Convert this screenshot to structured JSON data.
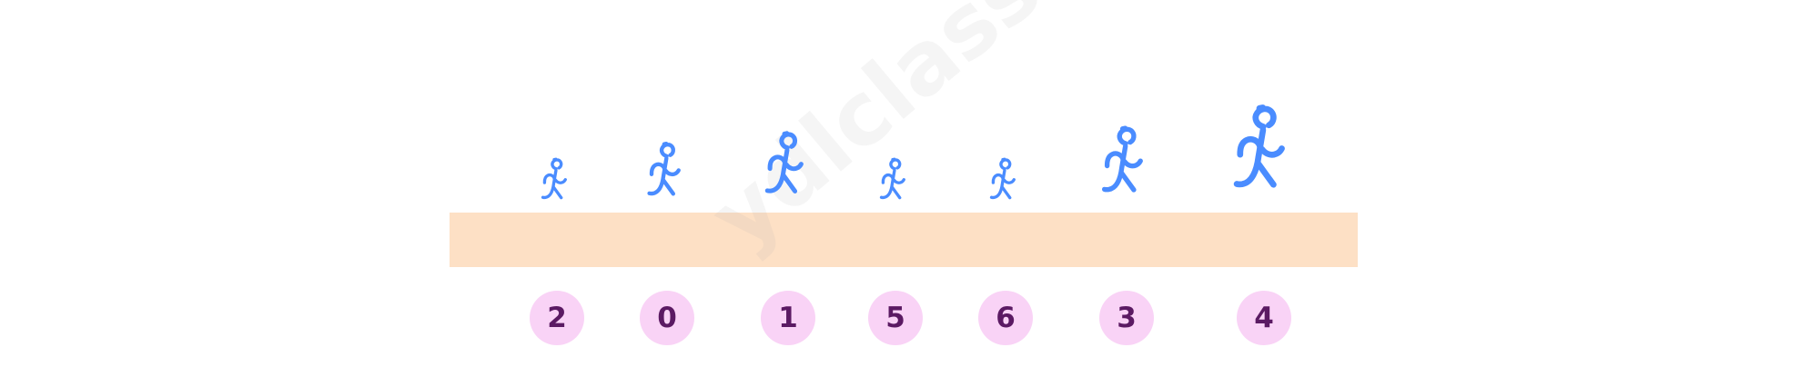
{
  "runners": [
    {
      "number": "2",
      "size": 1.0
    },
    {
      "number": "0",
      "size": 1.3
    },
    {
      "number": "1",
      "size": 1.5
    },
    {
      "number": "5",
      "size": 1.0
    },
    {
      "number": "6",
      "size": 1.0
    },
    {
      "number": "3",
      "size": 1.6
    },
    {
      "number": "4",
      "size": 2.0
    }
  ],
  "watermark": "ydlclass.com",
  "colors": {
    "figure": "#4a8cff",
    "track": "#fde0c5",
    "badge_bg": "#f9d3f6",
    "badge_text": "#5b1a63"
  }
}
